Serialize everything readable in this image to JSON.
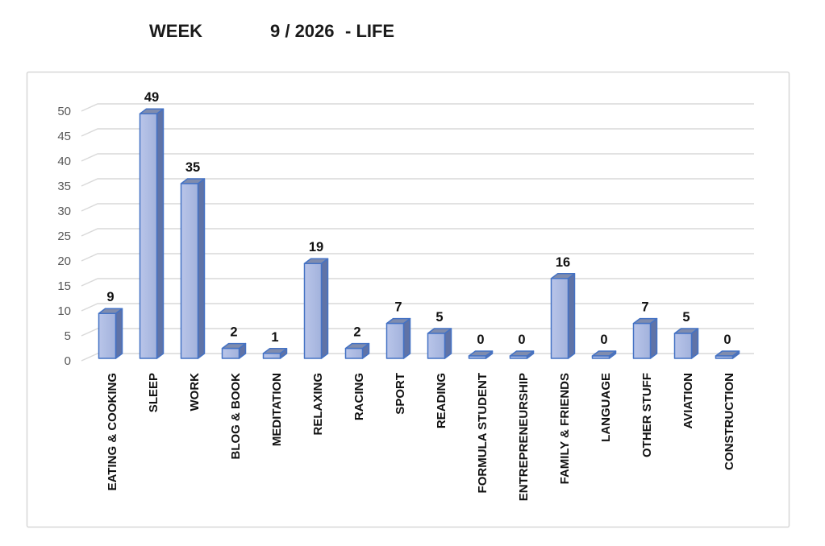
{
  "title": {
    "part1": "WEEK",
    "part2": "9 / 2026",
    "part3": "- LIFE"
  },
  "chart_data": {
    "type": "bar",
    "style": "3d-box",
    "title": "WEEK 9 / 2026 - LIFE",
    "categories": [
      "EATING & COOKING",
      "SLEEP",
      "WORK",
      "BLOG & BOOK",
      "MEDITATION",
      "RELAXING",
      "RACING",
      "SPORT",
      "READING",
      "FORMULA STUDENT",
      "ENTREPRENEURSHIP",
      "FAMILY & FRIENDS",
      "LANGUAGE",
      "OTHER STUFF",
      "AVIATION",
      "CONSTRUCTION"
    ],
    "values": [
      9,
      49,
      35,
      2,
      1,
      19,
      2,
      7,
      5,
      0,
      0,
      16,
      0,
      7,
      5,
      0
    ],
    "xlabel": "",
    "ylabel": "",
    "ylim": [
      0,
      50
    ],
    "yticks": [
      0,
      5,
      10,
      15,
      20,
      25,
      30,
      35,
      40,
      45,
      50
    ],
    "grid": true,
    "legend": false,
    "data_labels": true,
    "colors": {
      "bar_front_light": "#b9c5e9",
      "bar_front_dark": "#a2b2dc",
      "bar_side": "#5f73a7",
      "bar_top": "#7f8cae",
      "bar_edge": "#4472c4",
      "gridline": "#d9d9d9",
      "axis_text": "#595959",
      "value_text": "#111111",
      "chart_border": "#d7d7d7",
      "background": "#ffffff"
    }
  }
}
